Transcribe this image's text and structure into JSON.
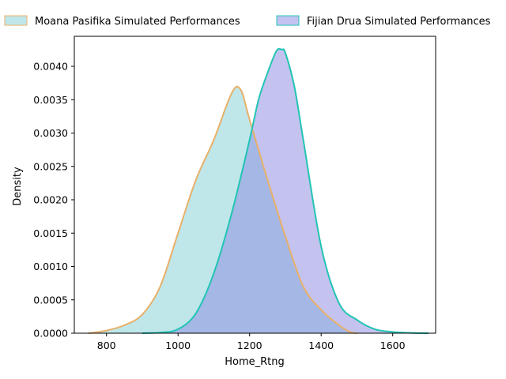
{
  "chart_data": {
    "type": "area",
    "xlabel": "Home_Rtng",
    "ylabel": "Density",
    "xlim": [
      710,
      1720
    ],
    "ylim": [
      0,
      0.00445
    ],
    "xticks": [
      800,
      1000,
      1200,
      1400,
      1600
    ],
    "xtick_labels": [
      "800",
      "1000",
      "1200",
      "1400",
      "1600"
    ],
    "yticks": [
      0,
      0.0005,
      0.001,
      0.0015,
      0.002,
      0.0025,
      0.003,
      0.0035,
      0.004
    ],
    "ytick_labels": [
      "0.0000",
      "0.0005",
      "0.0010",
      "0.0015",
      "0.0020",
      "0.0025",
      "0.0030",
      "0.0035",
      "0.0040"
    ],
    "grid": false,
    "legend_position": "top",
    "series": [
      {
        "name": "Moana Pasifika Simulated Performances",
        "fill_color": "#7fd0d6",
        "line_color": "#e8b06a",
        "x": [
          750,
          800,
          850,
          900,
          950,
          1000,
          1050,
          1100,
          1150,
          1175,
          1200,
          1250,
          1300,
          1350,
          1400,
          1450,
          1480,
          1500
        ],
        "y": [
          0.0,
          4e-05,
          0.00012,
          0.00028,
          0.0007,
          0.0015,
          0.0023,
          0.0029,
          0.0036,
          0.00365,
          0.0032,
          0.0023,
          0.00145,
          0.0007,
          0.00035,
          0.00012,
          2e-05,
          0.0
        ]
      },
      {
        "name": "Fijian Drua Simulated Performances",
        "fill_color": "#8a88e0",
        "line_color": "#22c4b4",
        "x": [
          900,
          950,
          1000,
          1050,
          1100,
          1150,
          1200,
          1225,
          1250,
          1275,
          1290,
          1300,
          1325,
          1350,
          1400,
          1450,
          1500,
          1550,
          1600,
          1650,
          1700
        ],
        "y": [
          0.0,
          1e-05,
          6e-05,
          0.0003,
          0.0009,
          0.0018,
          0.0029,
          0.0035,
          0.0039,
          0.00423,
          0.00425,
          0.0042,
          0.0037,
          0.0029,
          0.0013,
          0.00045,
          0.0002,
          6e-05,
          2e-05,
          5e-06,
          0.0
        ]
      }
    ]
  }
}
